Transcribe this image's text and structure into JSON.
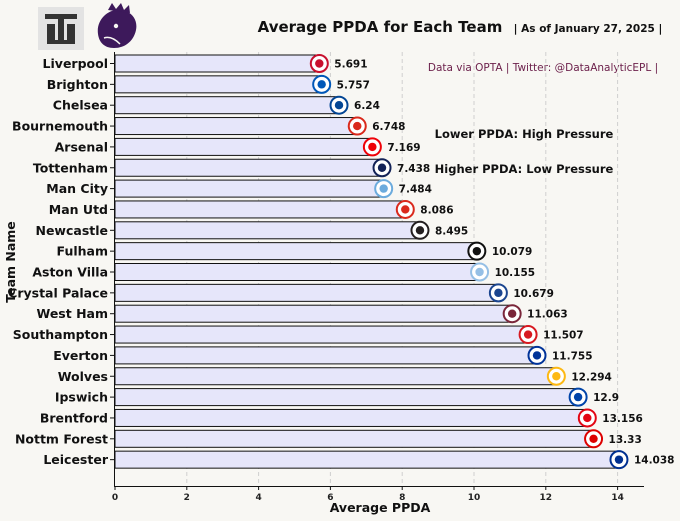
{
  "header": {
    "title": "Average PPDA for Each Team",
    "subtitle": "| As of January 27, 2025 |",
    "source": "Data via OPTA | Twitter: @DataAnalyticEPL |"
  },
  "annotations": {
    "line1": "Lower PPDA: High Pressure",
    "line2": "Higher PPDA: Low Pressure"
  },
  "logos": {
    "left": "site-logo",
    "right": "premier-league-lion-logo"
  },
  "colors": {
    "bar_fill": "#e6e6fa",
    "bar_edge": "#111111",
    "background": "#f8f7f3",
    "grid": "#cfcfcf",
    "accent_text": "#6b1f4a",
    "lion": "#3d195b"
  },
  "chart_data": {
    "type": "bar",
    "orientation": "horizontal",
    "xlabel": "Average PPDA",
    "ylabel": "Team Name",
    "xlim": [
      0,
      14.7
    ],
    "xticks": [
      0,
      2,
      4,
      6,
      8,
      10,
      12,
      14
    ],
    "grid": "vertical dashed",
    "categories": [
      "Liverpool",
      "Brighton",
      "Chelsea",
      "Bournemouth",
      "Arsenal",
      "Tottenham",
      "Man City",
      "Man Utd",
      "Newcastle",
      "Fulham",
      "Aston Villa",
      "Crystal Palace",
      "West Ham",
      "Southampton",
      "Everton",
      "Wolves",
      "Ipswich",
      "Brentford",
      "Nottm Forest",
      "Leicester"
    ],
    "values": [
      5.691,
      5.757,
      6.24,
      6.748,
      7.169,
      7.438,
      7.484,
      8.086,
      8.495,
      10.079,
      10.155,
      10.679,
      11.063,
      11.507,
      11.755,
      12.294,
      12.9,
      13.156,
      13.33,
      14.038
    ],
    "value_labels": [
      "5.691",
      "5.757",
      "6.24",
      "6.748",
      "7.169",
      "7.438",
      "7.484",
      "8.086",
      "8.495",
      "10.079",
      "10.155",
      "10.679",
      "11.063",
      "11.507",
      "11.755",
      "12.294",
      "12.9",
      "13.156",
      "13.33",
      "14.038"
    ],
    "badge_colors": [
      "#c8102e",
      "#0057b8",
      "#034694",
      "#da291c",
      "#ef0107",
      "#132257",
      "#6cabdd",
      "#da291c",
      "#241f20",
      "#111111",
      "#95bfe5",
      "#1b458f",
      "#7a263a",
      "#d71920",
      "#003399",
      "#fdb913",
      "#0044a9",
      "#e30613",
      "#dd0000",
      "#003090"
    ]
  }
}
